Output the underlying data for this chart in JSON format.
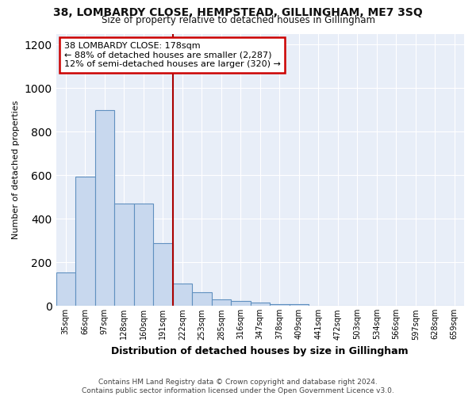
{
  "title1": "38, LOMBARDY CLOSE, HEMPSTEAD, GILLINGHAM, ME7 3SQ",
  "title2": "Size of property relative to detached houses in Gillingham",
  "xlabel": "Distribution of detached houses by size in Gillingham",
  "ylabel": "Number of detached properties",
  "footer1": "Contains HM Land Registry data © Crown copyright and database right 2024.",
  "footer2": "Contains public sector information licensed under the Open Government Licence v3.0.",
  "bar_labels": [
    "35sqm",
    "66sqm",
    "97sqm",
    "128sqm",
    "160sqm",
    "191sqm",
    "222sqm",
    "253sqm",
    "285sqm",
    "316sqm",
    "347sqm",
    "378sqm",
    "409sqm",
    "441sqm",
    "472sqm",
    "503sqm",
    "534sqm",
    "566sqm",
    "597sqm",
    "628sqm",
    "659sqm"
  ],
  "bar_values": [
    155,
    595,
    900,
    470,
    470,
    290,
    105,
    65,
    30,
    25,
    15,
    10,
    10,
    0,
    0,
    0,
    0,
    0,
    0,
    0,
    0
  ],
  "bar_color": "#c8d8ee",
  "bar_edgecolor": "#6090c0",
  "vline_x": 5.5,
  "vline_color": "#aa0000",
  "annotation_line1": "38 LOMBARDY CLOSE: 178sqm",
  "annotation_line2": "← 88% of detached houses are smaller (2,287)",
  "annotation_line3": "12% of semi-detached houses are larger (320) →",
  "ylim": [
    0,
    1250
  ],
  "background_color": "#ffffff",
  "plot_bg_color": "#e8eef8",
  "grid_color": "#ffffff",
  "yticks": [
    0,
    200,
    400,
    600,
    800,
    1000,
    1200
  ]
}
